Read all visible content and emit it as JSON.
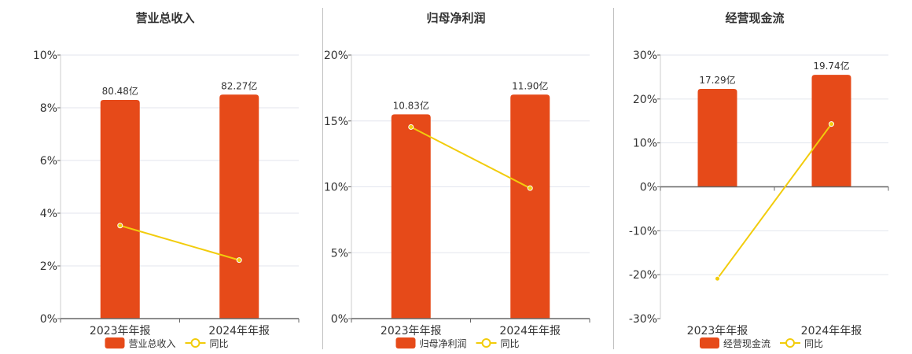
{
  "chart_data": [
    {
      "type": "bar",
      "title": "营业总收入",
      "categories": [
        "2023年年报",
        "2024年年报"
      ],
      "ylim": [
        0,
        10
      ],
      "yticks": [
        0,
        2,
        4,
        6,
        8,
        10
      ],
      "ytick_labels": [
        "0%",
        "2%",
        "4%",
        "6%",
        "8%",
        "10%"
      ],
      "grid": true,
      "legend_position": "bottom",
      "series": [
        {
          "name": "营业总收入",
          "kind": "bar",
          "values": [
            8.3,
            8.5
          ],
          "data_labels": [
            "80.48亿",
            "82.27亿"
          ]
        },
        {
          "name": "同比",
          "kind": "line",
          "values": [
            3.53,
            2.22
          ]
        }
      ]
    },
    {
      "type": "bar",
      "title": "归母净利润",
      "categories": [
        "2023年年报",
        "2024年年报"
      ],
      "ylim": [
        0,
        20
      ],
      "yticks": [
        0,
        5,
        10,
        15,
        20
      ],
      "ytick_labels": [
        "0%",
        "5%",
        "10%",
        "15%",
        "20%"
      ],
      "grid": true,
      "legend_position": "bottom",
      "series": [
        {
          "name": "归母净利润",
          "kind": "bar",
          "values": [
            15.5,
            17.0
          ],
          "data_labels": [
            "10.83亿",
            "11.90亿"
          ]
        },
        {
          "name": "同比",
          "kind": "line",
          "values": [
            14.54,
            9.9
          ]
        }
      ]
    },
    {
      "type": "bar",
      "title": "经营现金流",
      "categories": [
        "2023年年报",
        "2024年年报"
      ],
      "ylim": [
        -30,
        30
      ],
      "yticks": [
        -30,
        -20,
        -10,
        0,
        10,
        20,
        30
      ],
      "ytick_labels": [
        "-30%",
        "-20%",
        "-10%",
        "0%",
        "10%",
        "20%",
        "30%"
      ],
      "grid": true,
      "legend_position": "bottom",
      "series": [
        {
          "name": "经营现金流",
          "kind": "bar",
          "values": [
            22.3,
            25.5
          ],
          "data_labels": [
            "17.29亿",
            "19.74亿"
          ]
        },
        {
          "name": "同比",
          "kind": "line",
          "values": [
            -20.9,
            14.3
          ]
        }
      ]
    }
  ],
  "colors": {
    "bar": "#e64a19",
    "line": "#f2cc0c",
    "axis": "#666666",
    "grid": "#e3e6ee",
    "divider": "#bfbfbf"
  }
}
